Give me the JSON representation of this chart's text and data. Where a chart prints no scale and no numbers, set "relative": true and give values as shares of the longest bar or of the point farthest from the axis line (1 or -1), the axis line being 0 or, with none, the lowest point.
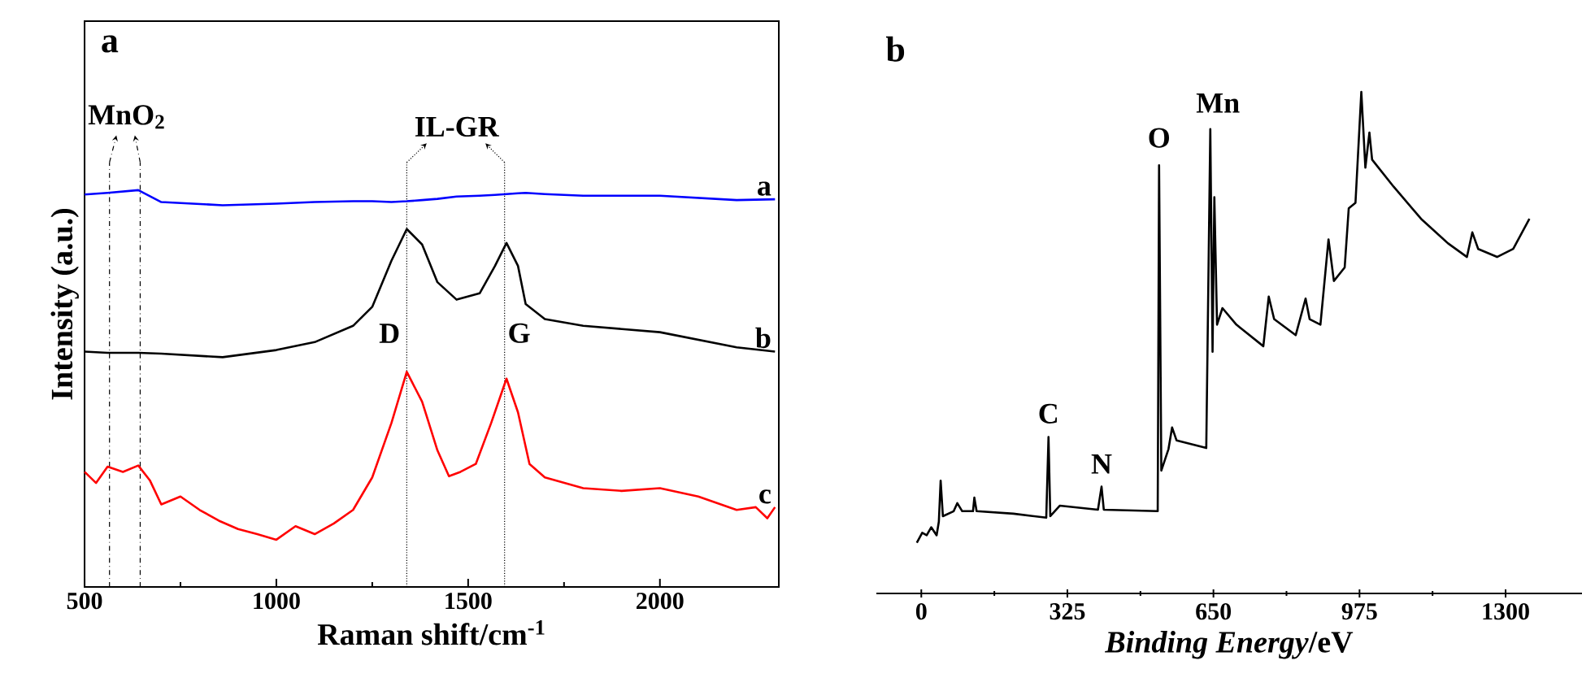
{
  "chart_data": [
    {
      "type": "line",
      "title": "a",
      "xlabel": "Raman shift/cm$^{-1}$",
      "ylabel": "Intensity (a.u.)",
      "relative": true,
      "xlim": [
        500,
        2310
      ],
      "xticks": [
        500,
        1000,
        1500,
        2000
      ],
      "marker": "none",
      "line_style": "solid",
      "x": [
        500,
        560,
        640,
        700,
        860,
        1000,
        1100,
        1200,
        1250,
        1300,
        1340,
        1380,
        1420,
        1470,
        1530,
        1570,
        1600,
        1630,
        1650,
        1700,
        1800,
        2000,
        2200,
        2300
      ],
      "series": [
        {
          "name": "a",
          "color": "#0000ff",
          "values": [
            0.989,
            0.993,
            1.0,
            0.97,
            0.962,
            0.966,
            0.97,
            0.972,
            0.972,
            0.97,
            0.972,
            0.975,
            0.978,
            0.984,
            0.986,
            0.988,
            0.99,
            0.992,
            0.993,
            0.99,
            0.986,
            0.986,
            0.975,
            0.977
          ]
        },
        {
          "name": "b",
          "color": "#000000",
          "values": [
            0.593,
            0.59,
            0.59,
            0.588,
            0.579,
            0.597,
            0.617,
            0.658,
            0.706,
            0.822,
            0.902,
            0.863,
            0.768,
            0.724,
            0.74,
            0.809,
            0.867,
            0.809,
            0.713,
            0.675,
            0.658,
            0.642,
            0.604,
            0.593
          ]
        },
        {
          "name": "c",
          "color": "#ff0000",
          "x": [
            500,
            530,
            560,
            600,
            640,
            670,
            700,
            750,
            800,
            850,
            900,
            950,
            1000,
            1050,
            1100,
            1150,
            1200,
            1250,
            1300,
            1340,
            1380,
            1420,
            1450,
            1480,
            1520,
            1560,
            1600,
            1630,
            1660,
            1700,
            1800,
            1900,
            2000,
            2100,
            2200,
            2250,
            2280,
            2300
          ],
          "values": [
            0.29,
            0.262,
            0.303,
            0.29,
            0.306,
            0.269,
            0.208,
            0.228,
            0.194,
            0.167,
            0.146,
            0.133,
            0.119,
            0.153,
            0.133,
            0.16,
            0.194,
            0.276,
            0.413,
            0.542,
            0.467,
            0.344,
            0.279,
            0.29,
            0.31,
            0.413,
            0.525,
            0.44,
            0.31,
            0.276,
            0.249,
            0.242,
            0.249,
            0.228,
            0.194,
            0.201,
            0.173,
            0.201
          ]
        }
      ],
      "ref_lines": [
        {
          "axis": "x",
          "value": 565,
          "line_style": "dashed"
        },
        {
          "axis": "x",
          "value": 645,
          "line_style": "dashed"
        },
        {
          "axis": "x",
          "value": 1340,
          "line_style": "dotted"
        },
        {
          "axis": "x",
          "value": 1595,
          "line_style": "dotted"
        }
      ],
      "annotations": [
        "MnO$_{2}$",
        "IL-GR",
        "D",
        "G"
      ]
    },
    {
      "type": "line",
      "title": "b",
      "xlabel": "*Binding Energy*/eV",
      "relative": true,
      "xlim": [
        -100,
        1470
      ],
      "xticks": [
        0,
        325,
        650,
        975,
        1300
      ],
      "marker": "none",
      "line_style": "solid",
      "x": [
        -10,
        2,
        12,
        22,
        34,
        39,
        43,
        48,
        72,
        80,
        91,
        115,
        118,
        123,
        205,
        278,
        283,
        287,
        308,
        393,
        401,
        406,
        526,
        529,
        534,
        550,
        558,
        568,
        634,
        643,
        648,
        652,
        658,
        670,
        701,
        761,
        773,
        785,
        833,
        855,
        864,
        888,
        906,
        918,
        942,
        951,
        966,
        979,
        988,
        997,
        1003,
        1051,
        1112,
        1172,
        1214,
        1226,
        1239,
        1281,
        1317,
        1353
      ],
      "series": [
        {
          "color": "#000000",
          "values": [
            0.101,
            0.121,
            0.116,
            0.132,
            0.116,
            0.143,
            0.225,
            0.154,
            0.164,
            0.18,
            0.164,
            0.164,
            0.191,
            0.164,
            0.159,
            0.151,
            0.312,
            0.154,
            0.175,
            0.167,
            0.213,
            0.167,
            0.164,
            0.854,
            0.245,
            0.288,
            0.331,
            0.305,
            0.29,
            0.926,
            0.482,
            0.79,
            0.536,
            0.569,
            0.536,
            0.493,
            0.592,
            0.547,
            0.515,
            0.588,
            0.547,
            0.536,
            0.706,
            0.623,
            0.65,
            0.768,
            0.779,
            1.0,
            0.849,
            0.919,
            0.865,
            0.811,
            0.747,
            0.698,
            0.671,
            0.72,
            0.687,
            0.671,
            0.687,
            0.747
          ]
        }
      ],
      "annotations": [
        "C",
        "N",
        "O",
        "Mn"
      ]
    }
  ]
}
